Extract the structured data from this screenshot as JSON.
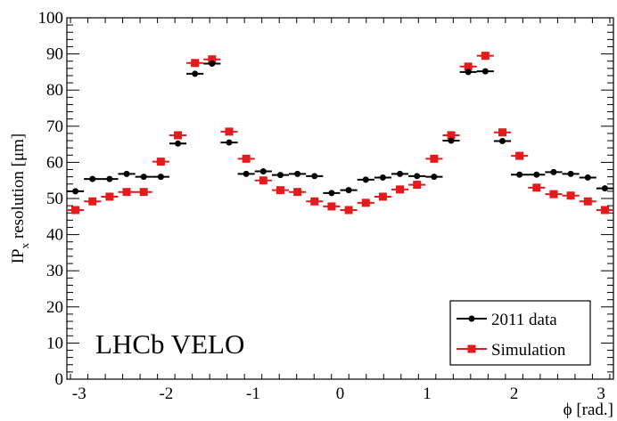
{
  "chart_data": {
    "type": "scatter",
    "xlabel": "ϕ [rad.]",
    "ylabel": {
      "main": "IP",
      "sub": "x",
      "rest": " resolution [μm]"
    },
    "xlim": [
      -3.1416,
      3.1416
    ],
    "ylim": [
      0,
      100
    ],
    "x_ticks": [
      -3,
      -2,
      -1,
      0,
      1,
      2,
      3
    ],
    "y_ticks": [
      0,
      10,
      20,
      30,
      40,
      50,
      60,
      70,
      80,
      90,
      100
    ],
    "annotation": "LHCb VELO",
    "legend_position": "bottom-right",
    "grid": false,
    "bin_half_width": 0.0982,
    "series": [
      {
        "name": "2011 data",
        "color": "#000000",
        "marker": "circle",
        "x": [
          -3.0434,
          -2.8471,
          -2.6507,
          -2.4543,
          -2.258,
          -2.0616,
          -1.8653,
          -1.669,
          -1.4726,
          -1.2763,
          -1.0799,
          -0.8836,
          -0.6872,
          -0.4909,
          -0.2945,
          -0.0982,
          0.0982,
          0.2945,
          0.4909,
          0.6872,
          0.8836,
          1.0799,
          1.2763,
          1.4726,
          1.669,
          1.8653,
          2.0616,
          2.258,
          2.4543,
          2.6507,
          2.8471,
          3.0434
        ],
        "y": [
          52.0,
          55.4,
          55.4,
          56.8,
          56.0,
          56.0,
          65.2,
          84.5,
          87.3,
          65.5,
          56.8,
          57.5,
          56.5,
          56.8,
          56.2,
          51.5,
          52.3,
          55.2,
          55.8,
          56.8,
          56.2,
          56.0,
          66.0,
          85.0,
          85.2,
          65.9,
          56.6,
          56.6,
          57.3,
          56.8,
          55.8,
          52.8
        ]
      },
      {
        "name": "Simulation",
        "color": "#e41a1c",
        "marker": "square",
        "x": [
          -3.0434,
          -2.8471,
          -2.6507,
          -2.4543,
          -2.258,
          -2.0616,
          -1.8653,
          -1.669,
          -1.4726,
          -1.2763,
          -1.0799,
          -0.8836,
          -0.6872,
          -0.4909,
          -0.2945,
          -0.0982,
          0.0982,
          0.2945,
          0.4909,
          0.6872,
          0.8836,
          1.0799,
          1.2763,
          1.4726,
          1.669,
          1.8653,
          2.0616,
          2.258,
          2.4543,
          2.6507,
          2.8471,
          3.0434
        ],
        "y": [
          46.8,
          49.2,
          50.5,
          51.8,
          51.8,
          60.2,
          67.5,
          87.5,
          88.5,
          68.5,
          61.0,
          55.0,
          52.3,
          51.8,
          49.2,
          47.8,
          46.8,
          48.8,
          50.5,
          52.5,
          53.8,
          61.0,
          67.5,
          86.5,
          89.5,
          68.3,
          61.8,
          53.0,
          51.2,
          50.8,
          49.2,
          46.8
        ]
      }
    ]
  }
}
